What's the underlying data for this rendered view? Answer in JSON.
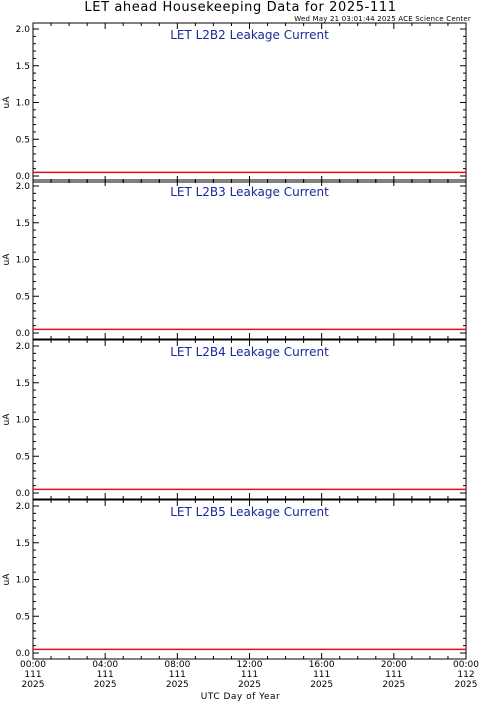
{
  "header": {
    "title": "LET ahead Housekeeping Data for 2025-111",
    "timestamp": "Wed May 21 03:01:44 2025 ACE Science Center"
  },
  "x_axis_title": "UTC Day of Year",
  "colors": {
    "series": "#e01010",
    "panel_title": "#1a2a9c",
    "axes": "#000000"
  },
  "chart_data": [
    {
      "type": "line",
      "title": "LET L2B2 Leakage Current",
      "ylabel": "uA",
      "ylim": [
        0,
        2.0
      ],
      "yticks": [
        "0.0",
        "0.5",
        "1.0",
        "1.5",
        "2.0"
      ],
      "xlim": [
        0,
        24
      ],
      "x": [
        0,
        24
      ],
      "series": [
        {
          "values": [
            0.05,
            0.05
          ]
        }
      ]
    },
    {
      "type": "line",
      "title": "LET L2B3 Leakage Current",
      "ylabel": "uA",
      "ylim": [
        0,
        2.0
      ],
      "yticks": [
        "0.0",
        "0.5",
        "1.0",
        "1.5",
        "2.0"
      ],
      "xlim": [
        0,
        24
      ],
      "x": [
        0,
        24
      ],
      "series": [
        {
          "values": [
            0.05,
            0.05
          ]
        }
      ]
    },
    {
      "type": "line",
      "title": "LET L2B4 Leakage Current",
      "ylabel": "uA",
      "ylim": [
        0,
        2.0
      ],
      "yticks": [
        "0.0",
        "0.5",
        "1.0",
        "1.5",
        "2.0"
      ],
      "xlim": [
        0,
        24
      ],
      "x": [
        0,
        24
      ],
      "series": [
        {
          "values": [
            0.05,
            0.05
          ]
        }
      ]
    },
    {
      "type": "line",
      "title": "LET L2B5 Leakage Current",
      "ylabel": "uA",
      "ylim": [
        0,
        2.0
      ],
      "yticks": [
        "0.0",
        "0.5",
        "1.0",
        "1.5",
        "2.0"
      ],
      "xlim": [
        0,
        24
      ],
      "x": [
        0,
        24
      ],
      "series": [
        {
          "values": [
            0.05,
            0.05
          ]
        }
      ]
    }
  ],
  "x_ticks": [
    {
      "time": "00:00",
      "doy": "111",
      "year": "2025"
    },
    {
      "time": "04:00",
      "doy": "111",
      "year": "2025"
    },
    {
      "time": "08:00",
      "doy": "111",
      "year": "2025"
    },
    {
      "time": "12:00",
      "doy": "111",
      "year": "2025"
    },
    {
      "time": "16:00",
      "doy": "111",
      "year": "2025"
    },
    {
      "time": "20:00",
      "doy": "111",
      "year": "2025"
    },
    {
      "time": "00:00",
      "doy": "112",
      "year": "2025"
    }
  ]
}
